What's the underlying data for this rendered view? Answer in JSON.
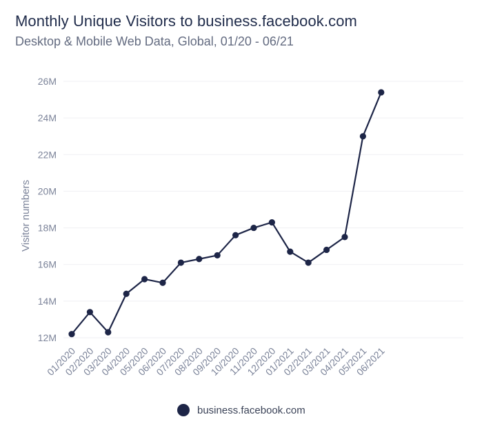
{
  "header": {
    "title": "Monthly Unique Visitors to business.facebook.com",
    "subtitle": "Desktop & Mobile Web Data, Global, 01/20 - 06/21"
  },
  "chart_data": {
    "type": "line",
    "title": "Monthly Unique Visitors to business.facebook.com",
    "subtitle": "Desktop & Mobile Web Data, Global, 01/20 - 06/21",
    "xlabel": "",
    "ylabel": "Visitor numbers",
    "ylim": [
      12,
      26
    ],
    "y_ticks": [
      12,
      14,
      16,
      18,
      20,
      22,
      24,
      26
    ],
    "y_tick_labels": [
      "12M",
      "14M",
      "16M",
      "18M",
      "20M",
      "22M",
      "24M",
      "26M"
    ],
    "grid": true,
    "legend_position": "bottom",
    "categories": [
      "01/2020",
      "02/2020",
      "03/2020",
      "04/2020",
      "05/2020",
      "06/2020",
      "07/2020",
      "08/2020",
      "09/2020",
      "10/2020",
      "11/2020",
      "12/2020",
      "01/2021",
      "02/2021",
      "03/2021",
      "04/2021",
      "05/2021",
      "06/2021"
    ],
    "series": [
      {
        "name": "business.facebook.com",
        "color": "#1d2547",
        "values": [
          12.2,
          13.4,
          12.3,
          14.4,
          15.2,
          15.0,
          16.1,
          16.3,
          16.5,
          17.6,
          18.0,
          18.3,
          16.7,
          16.1,
          16.8,
          17.5,
          23.0,
          25.4
        ]
      }
    ]
  }
}
